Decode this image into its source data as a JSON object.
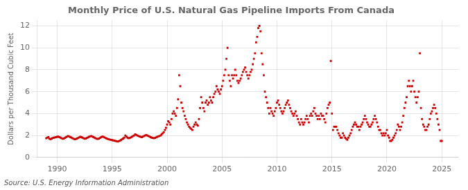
{
  "chart_data": {
    "type": "scatter",
    "title": "Monthly Price of U.S. Natural Gas Pipeline Imports From Canada",
    "ylabel": "Dollars per Thousand Cubic Feet",
    "annotations": [
      "Source: U.S. Energy Information Administration"
    ],
    "color": "#cc0000",
    "marker": "square",
    "grid": true,
    "xlim": [
      1988.2,
      2026.5
    ],
    "ylim": [
      0,
      12.5
    ],
    "xticks": [
      1990,
      1995,
      2000,
      2005,
      2010,
      2015,
      2020,
      2025
    ],
    "yticks": [
      0,
      2,
      4,
      6,
      8,
      10,
      12
    ],
    "x": [
      1989.0,
      1989.1,
      1989.2,
      1989.3,
      1989.4,
      1989.5,
      1989.6,
      1989.7,
      1989.8,
      1989.9,
      1990.0,
      1990.1,
      1990.2,
      1990.3,
      1990.4,
      1990.5,
      1990.6,
      1990.7,
      1990.8,
      1990.9,
      1991.0,
      1991.1,
      1991.2,
      1991.3,
      1991.4,
      1991.5,
      1991.6,
      1991.7,
      1991.8,
      1991.9,
      1992.0,
      1992.1,
      1992.2,
      1992.3,
      1992.4,
      1992.5,
      1992.6,
      1992.7,
      1992.8,
      1992.9,
      1993.0,
      1993.1,
      1993.2,
      1993.3,
      1993.4,
      1993.5,
      1993.6,
      1993.7,
      1993.8,
      1993.9,
      1994.0,
      1994.1,
      1994.2,
      1994.3,
      1994.4,
      1994.5,
      1994.6,
      1994.7,
      1994.8,
      1994.9,
      1995.0,
      1995.1,
      1995.2,
      1995.3,
      1995.4,
      1995.5,
      1995.6,
      1995.7,
      1995.8,
      1995.9,
      1996.0,
      1996.1,
      1996.2,
      1996.3,
      1996.4,
      1996.5,
      1996.6,
      1996.7,
      1996.8,
      1996.9,
      1997.0,
      1997.1,
      1997.2,
      1997.3,
      1997.4,
      1997.5,
      1997.6,
      1997.7,
      1997.8,
      1997.9,
      1998.0,
      1998.1,
      1998.2,
      1998.3,
      1998.4,
      1998.5,
      1998.6,
      1998.7,
      1998.8,
      1998.9,
      1999.0,
      1999.1,
      1999.2,
      1999.3,
      1999.4,
      1999.5,
      1999.6,
      1999.7,
      1999.8,
      1999.9,
      2000.0,
      2000.1,
      2000.2,
      2000.3,
      2000.4,
      2000.5,
      2000.6,
      2000.7,
      2000.8,
      2000.9,
      2001.0,
      2001.1,
      2001.2,
      2001.3,
      2001.4,
      2001.5,
      2001.6,
      2001.7,
      2001.8,
      2001.9,
      2002.0,
      2002.1,
      2002.2,
      2002.3,
      2002.4,
      2002.5,
      2002.6,
      2002.7,
      2002.8,
      2002.9,
      2003.0,
      2003.1,
      2003.2,
      2003.3,
      2003.4,
      2003.5,
      2003.6,
      2003.7,
      2003.8,
      2003.9,
      2004.0,
      2004.1,
      2004.2,
      2004.3,
      2004.4,
      2004.5,
      2004.6,
      2004.7,
      2004.8,
      2004.9,
      2005.0,
      2005.1,
      2005.2,
      2005.3,
      2005.4,
      2005.5,
      2005.6,
      2005.7,
      2005.8,
      2005.9,
      2006.0,
      2006.1,
      2006.2,
      2006.3,
      2006.4,
      2006.5,
      2006.6,
      2006.7,
      2006.8,
      2006.9,
      2007.0,
      2007.1,
      2007.2,
      2007.3,
      2007.4,
      2007.5,
      2007.6,
      2007.7,
      2007.8,
      2007.9,
      2008.0,
      2008.1,
      2008.2,
      2008.3,
      2008.4,
      2008.5,
      2008.6,
      2008.7,
      2008.8,
      2008.9,
      2009.0,
      2009.1,
      2009.2,
      2009.3,
      2009.4,
      2009.5,
      2009.6,
      2009.7,
      2009.8,
      2009.9,
      2010.0,
      2010.1,
      2010.2,
      2010.3,
      2010.4,
      2010.5,
      2010.6,
      2010.7,
      2010.8,
      2010.9,
      2011.0,
      2011.1,
      2011.2,
      2011.3,
      2011.4,
      2011.5,
      2011.6,
      2011.7,
      2011.8,
      2011.9,
      2012.0,
      2012.1,
      2012.2,
      2012.3,
      2012.4,
      2012.5,
      2012.6,
      2012.7,
      2012.8,
      2012.9,
      2013.0,
      2013.1,
      2013.2,
      2013.3,
      2013.4,
      2013.5,
      2013.6,
      2013.7,
      2013.8,
      2013.9,
      2014.0,
      2014.1,
      2014.2,
      2014.3,
      2014.4,
      2014.5,
      2014.6,
      2014.7,
      2014.8,
      2014.9,
      2015.0,
      2015.1,
      2015.2,
      2015.3,
      2015.4,
      2015.5,
      2015.6,
      2015.7,
      2015.8,
      2015.9,
      2016.0,
      2016.1,
      2016.2,
      2016.3,
      2016.4,
      2016.5,
      2016.6,
      2016.7,
      2016.8,
      2016.9,
      2017.0,
      2017.1,
      2017.2,
      2017.3,
      2017.4,
      2017.5,
      2017.6,
      2017.7,
      2017.8,
      2017.9,
      2018.0,
      2018.1,
      2018.2,
      2018.3,
      2018.4,
      2018.5,
      2018.6,
      2018.7,
      2018.8,
      2018.9,
      2019.0,
      2019.1,
      2019.2,
      2019.3,
      2019.4,
      2019.5,
      2019.6,
      2019.7,
      2019.8,
      2019.9,
      2020.0,
      2020.1,
      2020.2,
      2020.3,
      2020.4,
      2020.5,
      2020.6,
      2020.7,
      2020.8,
      2020.9,
      2021.0,
      2021.1,
      2021.2,
      2021.3,
      2021.4,
      2021.5,
      2021.6,
      2021.7,
      2021.8,
      2021.9,
      2022.0,
      2022.1,
      2022.2,
      2022.3,
      2022.4,
      2022.5,
      2022.6,
      2022.7,
      2022.8,
      2022.9,
      2023.0,
      2023.1,
      2023.2,
      2023.3,
      2023.4,
      2023.5,
      2023.6,
      2023.7,
      2023.8,
      2023.9,
      2024.0,
      2024.1,
      2024.2,
      2024.3,
      2024.4,
      2024.5,
      2024.6,
      2024.7,
      2024.8,
      2024.9,
      2025.0
    ],
    "values": [
      1.75,
      1.8,
      1.85,
      1.7,
      1.65,
      1.72,
      1.78,
      1.8,
      1.82,
      1.85,
      1.88,
      1.9,
      1.85,
      1.8,
      1.75,
      1.7,
      1.72,
      1.78,
      1.85,
      1.9,
      1.95,
      1.9,
      1.85,
      1.8,
      1.75,
      1.7,
      1.65,
      1.68,
      1.72,
      1.78,
      1.82,
      1.88,
      1.85,
      1.8,
      1.75,
      1.7,
      1.72,
      1.78,
      1.82,
      1.88,
      1.92,
      1.95,
      1.9,
      1.85,
      1.8,
      1.75,
      1.7,
      1.68,
      1.72,
      1.78,
      1.85,
      1.9,
      1.88,
      1.82,
      1.78,
      1.72,
      1.68,
      1.65,
      1.62,
      1.6,
      1.58,
      1.55,
      1.52,
      1.5,
      1.48,
      1.45,
      1.48,
      1.52,
      1.58,
      1.65,
      1.72,
      1.8,
      2.0,
      1.9,
      1.8,
      1.75,
      1.78,
      1.82,
      1.88,
      1.95,
      2.0,
      2.1,
      2.05,
      2.0,
      1.95,
      1.9,
      1.88,
      1.85,
      1.9,
      1.95,
      2.0,
      2.05,
      2.0,
      1.95,
      1.9,
      1.85,
      1.8,
      1.78,
      1.75,
      1.78,
      1.82,
      1.88,
      1.92,
      1.95,
      2.0,
      2.1,
      2.2,
      2.3,
      2.5,
      2.7,
      3.0,
      3.3,
      3.2,
      3.0,
      3.5,
      4.0,
      4.2,
      4.0,
      3.8,
      4.5,
      5.3,
      7.5,
      6.5,
      5.0,
      4.5,
      4.2,
      3.8,
      3.5,
      3.2,
      3.0,
      2.8,
      2.7,
      2.6,
      2.5,
      2.8,
      3.0,
      3.2,
      3.0,
      2.9,
      3.5,
      4.5,
      5.5,
      5.0,
      4.5,
      4.2,
      5.0,
      5.2,
      4.8,
      5.0,
      5.5,
      5.2,
      5.0,
      5.5,
      5.8,
      6.0,
      6.5,
      6.2,
      6.0,
      5.8,
      6.2,
      6.5,
      7.0,
      7.5,
      8.0,
      9.0,
      10.0,
      7.5,
      7.0,
      6.5,
      7.5,
      7.2,
      7.5,
      8.0,
      7.5,
      7.0,
      6.8,
      7.0,
      7.2,
      7.5,
      7.8,
      8.0,
      8.2,
      7.8,
      7.5,
      7.2,
      7.5,
      7.8,
      8.0,
      8.5,
      9.0,
      9.5,
      10.5,
      11.0,
      11.8,
      12.0,
      11.5,
      9.5,
      8.5,
      7.5,
      6.0,
      5.5,
      5.0,
      4.5,
      4.0,
      4.5,
      4.2,
      4.0,
      3.8,
      4.2,
      4.5,
      5.0,
      5.2,
      4.8,
      4.5,
      4.2,
      4.0,
      4.2,
      4.5,
      4.8,
      5.0,
      5.2,
      4.8,
      4.5,
      4.2,
      4.0,
      3.8,
      4.0,
      4.2,
      3.8,
      3.5,
      3.2,
      3.0,
      3.5,
      3.2,
      3.0,
      3.2,
      3.5,
      3.8,
      3.5,
      3.2,
      3.8,
      4.0,
      3.8,
      4.2,
      4.5,
      4.0,
      3.8,
      3.5,
      3.8,
      3.5,
      4.0,
      3.8,
      3.8,
      3.5,
      3.2,
      4.0,
      4.5,
      4.8,
      5.0,
      8.8,
      4.0,
      2.5,
      2.8,
      2.8,
      2.8,
      2.5,
      2.2,
      2.0,
      1.8,
      1.8,
      2.2,
      2.0,
      1.8,
      1.7,
      1.6,
      1.8,
      2.0,
      2.2,
      2.5,
      2.8,
      3.0,
      3.2,
      3.0,
      2.8,
      2.8,
      2.5,
      2.8,
      3.0,
      3.2,
      3.5,
      3.8,
      3.5,
      3.2,
      3.0,
      2.8,
      2.8,
      3.0,
      3.2,
      3.5,
      3.8,
      3.5,
      3.2,
      2.8,
      2.5,
      2.5,
      2.2,
      2.0,
      2.2,
      2.0,
      2.2,
      2.5,
      2.0,
      1.8,
      1.5,
      1.5,
      1.6,
      1.8,
      2.0,
      2.2,
      2.5,
      3.0,
      2.8,
      2.5,
      2.8,
      3.2,
      3.8,
      4.5,
      5.0,
      5.5,
      6.5,
      7.0,
      6.5,
      6.0,
      6.5,
      7.0,
      6.0,
      5.5,
      5.0,
      5.5,
      6.0,
      9.5,
      4.5,
      3.5,
      3.0,
      2.8,
      2.5,
      2.5,
      2.8,
      3.0,
      3.5,
      4.0,
      4.2,
      4.5,
      4.8,
      4.5,
      4.0,
      3.5,
      3.0,
      2.5,
      1.5,
      1.5
    ]
  }
}
